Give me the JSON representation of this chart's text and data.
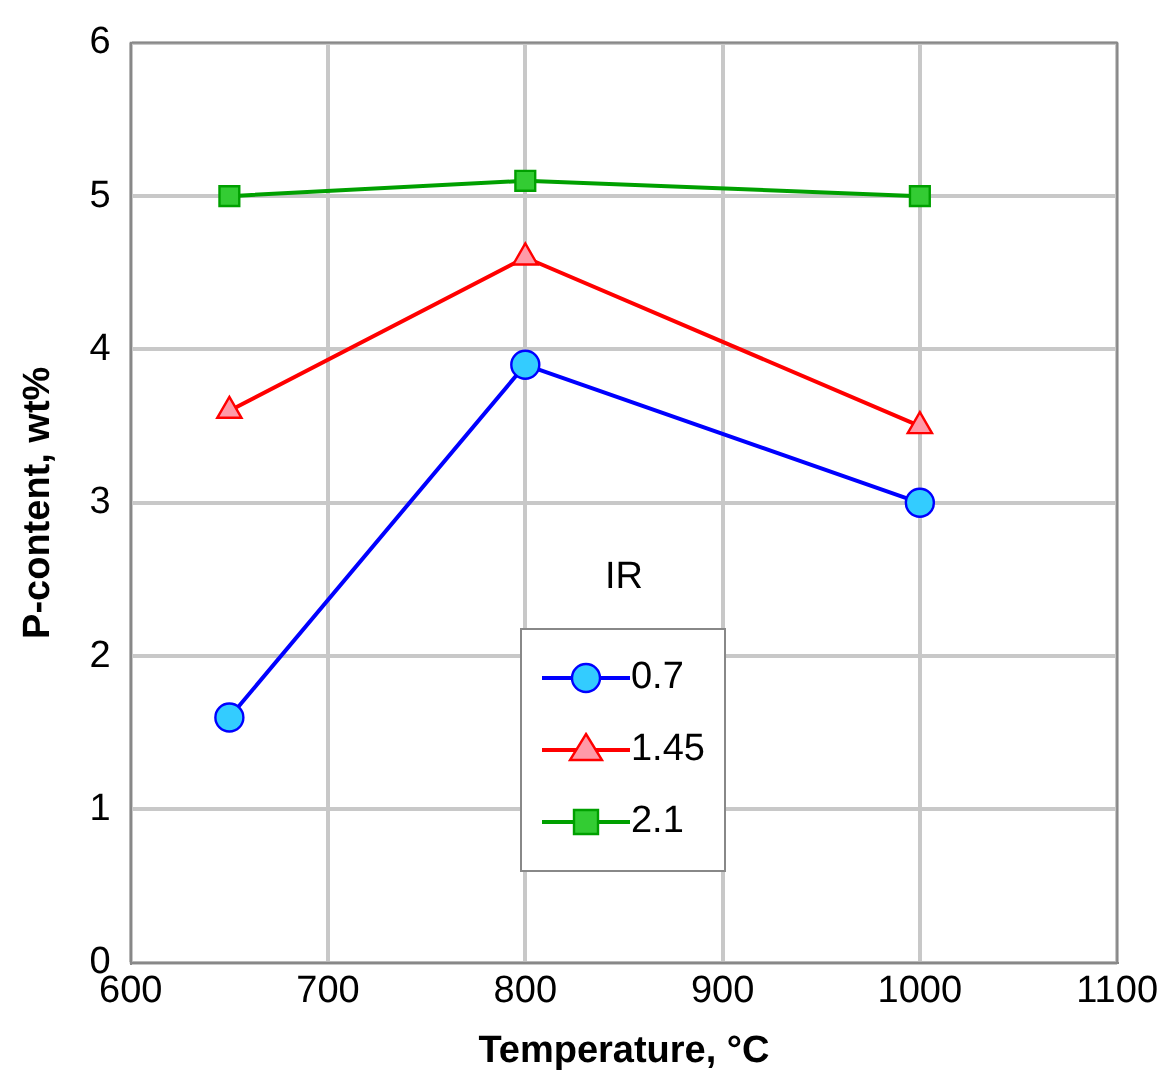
{
  "chart_data": {
    "type": "line",
    "xlabel": "Temperature, °C",
    "ylabel": "P-content, wt%",
    "legend_title": "IR",
    "legend": "bottom",
    "grid": true,
    "x": [
      650,
      800,
      1000
    ],
    "xlim": [
      600,
      1100
    ],
    "xticks": [
      600,
      700,
      800,
      900,
      1000,
      1100
    ],
    "ylim": [
      0,
      6
    ],
    "yticks": [
      0,
      1,
      2,
      3,
      4,
      5,
      6
    ],
    "series": [
      {
        "name": "0.7",
        "color": "#0000ff",
        "marker": "circle",
        "values": [
          1.6,
          3.9,
          3.0
        ]
      },
      {
        "name": "1.45",
        "color": "#ff0000",
        "marker": "triangle",
        "values": [
          3.6,
          4.6,
          3.5
        ]
      },
      {
        "name": "2.1",
        "color": "#00a000",
        "marker": "square",
        "values": [
          5.0,
          5.1,
          5.0
        ]
      }
    ]
  }
}
